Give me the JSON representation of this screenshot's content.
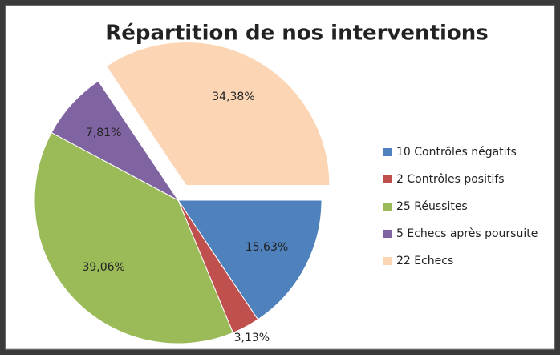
{
  "chart_data": {
    "type": "pie",
    "title": "Répartition de nos interventions",
    "categories": [
      "10 Contrôles négatifs",
      "2 Contrôles positifs",
      "25 Réussites",
      "5 Echecs après poursuite",
      "22 Echecs"
    ],
    "values": [
      15.63,
      3.13,
      39.06,
      7.81,
      34.38
    ],
    "value_labels": [
      "15,63%",
      "3,13%",
      "39,06%",
      "7,81%",
      "34,38%"
    ],
    "colors": [
      "#4f81bd",
      "#c0504d",
      "#9bbb59",
      "#8064a2",
      "#fcd5b5"
    ],
    "exploded": [
      false,
      false,
      false,
      false,
      true
    ],
    "legend": "right"
  }
}
